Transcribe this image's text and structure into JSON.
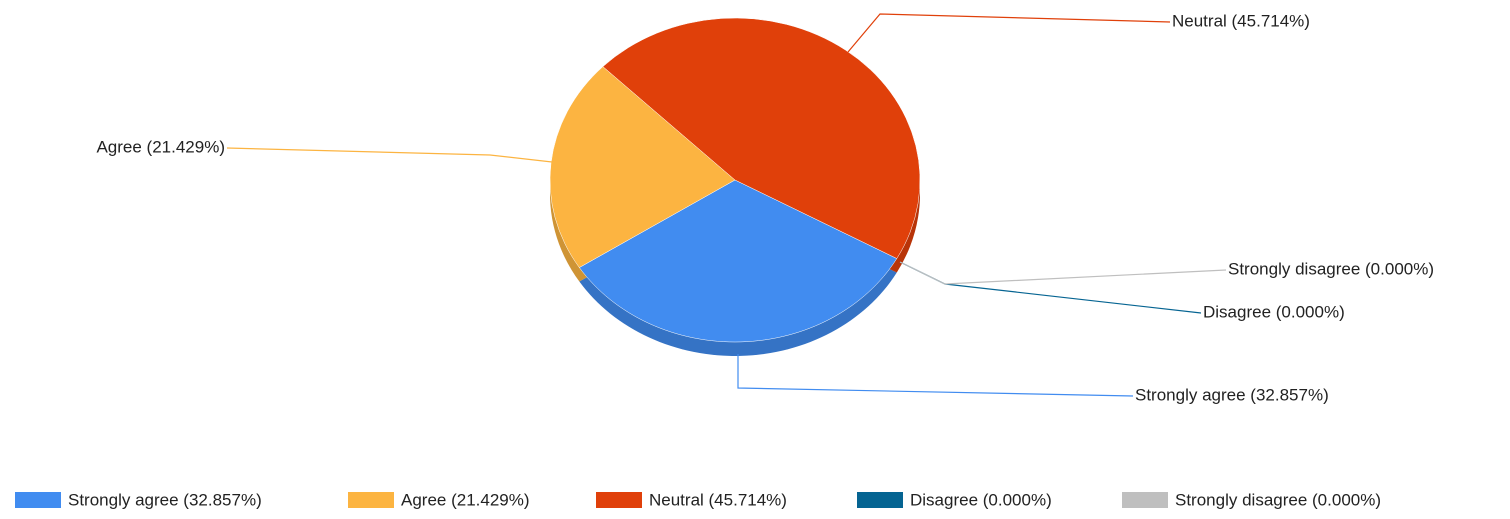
{
  "chart_data": {
    "type": "pie",
    "categories": [
      "Strongly agree (32.857%)",
      "Agree (21.429%)",
      "Neutral (45.714%)",
      "Disagree (0.000%)",
      "Strongly disagree (0.000%)"
    ],
    "values": [
      32.857,
      21.429,
      45.714,
      0,
      0
    ],
    "colors": [
      "#418cf0",
      "#fcb441",
      "#e0400a",
      "#056492",
      "#bfbfbf"
    ],
    "legend": "bottom"
  }
}
